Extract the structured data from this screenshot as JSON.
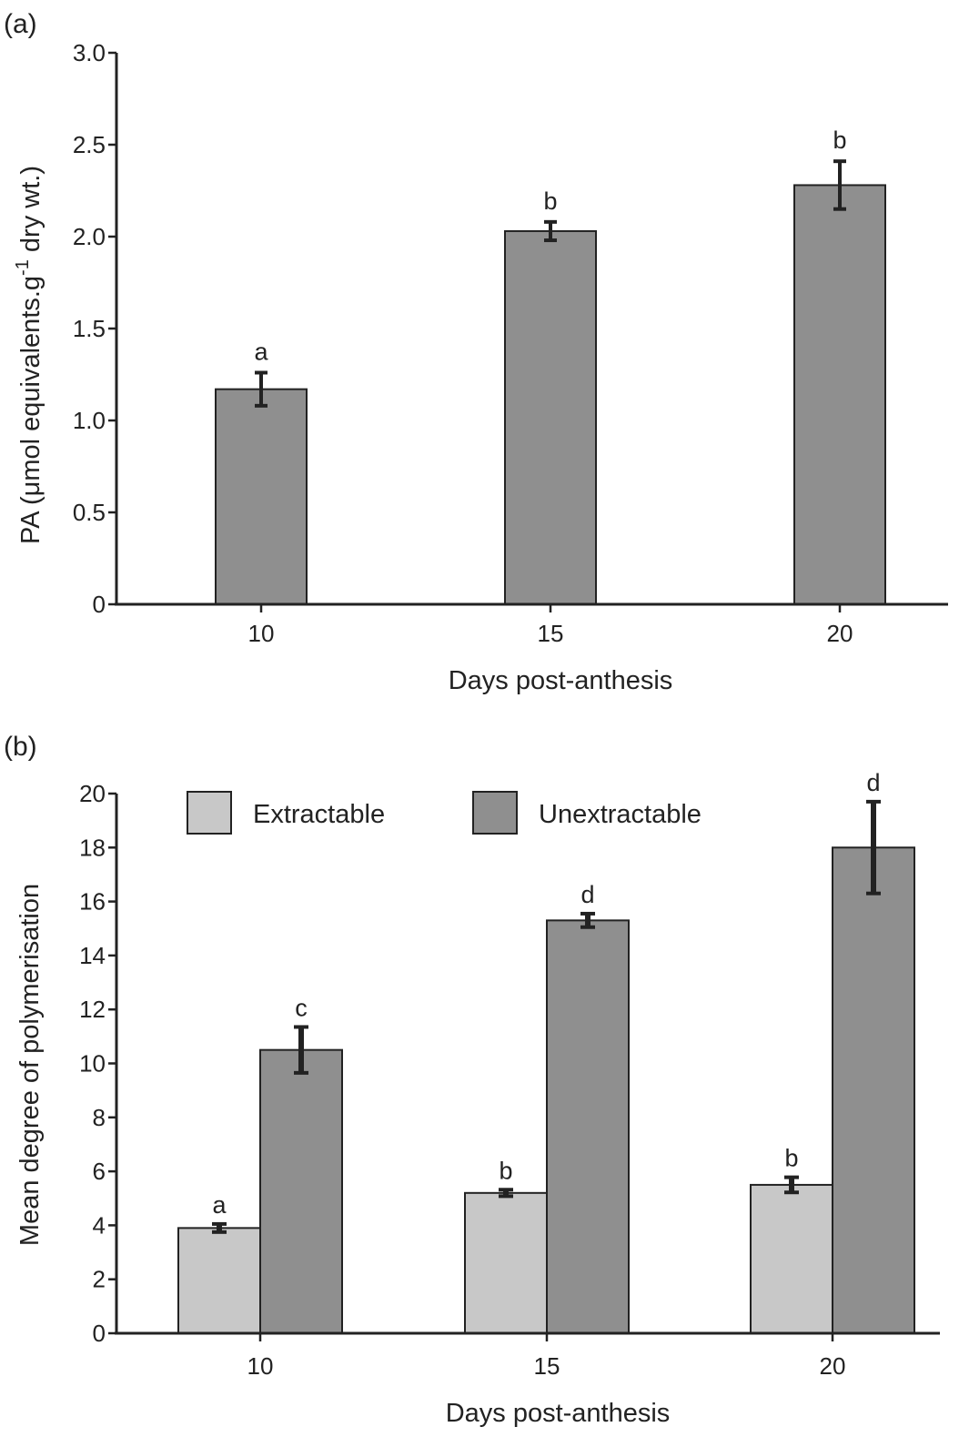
{
  "chart_data": [
    {
      "type": "bar",
      "panel_label": "(a)",
      "categories": [
        "10",
        "15",
        "20"
      ],
      "series": [
        {
          "values": [
            1.17,
            2.03,
            2.28
          ],
          "errors": [
            0.09,
            0.05,
            0.13
          ],
          "sig_letters": [
            "a",
            "b",
            "b"
          ],
          "color": "#8f8f8f"
        }
      ],
      "xlabel": "Days post-anthesis",
      "ylabel_main": "PA (μmol equivalents.g",
      "ylabel_sup": "-1",
      "ylabel_tail": " dry wt.)",
      "ylim": [
        0,
        3.0
      ],
      "yticks": [
        "0",
        "0.5",
        "1.0",
        "1.5",
        "2.0",
        "2.5",
        "3.0"
      ],
      "grid": false
    },
    {
      "type": "bar",
      "panel_label": "(b)",
      "categories": [
        "10",
        "15",
        "20"
      ],
      "series": [
        {
          "name": "Extractable",
          "values": [
            3.9,
            5.2,
            5.5
          ],
          "errors": [
            0.15,
            0.12,
            0.28
          ],
          "sig_letters": [
            "a",
            "b",
            "b"
          ],
          "color": "#c8c8c8"
        },
        {
          "name": "Unextractable",
          "values": [
            10.5,
            15.3,
            18.0
          ],
          "errors": [
            0.85,
            0.25,
            1.7
          ],
          "sig_letters": [
            "c",
            "d",
            "d"
          ],
          "color": "#8f8f8f"
        }
      ],
      "xlabel": "Days post-anthesis",
      "ylabel_main": "Mean degree of polymerisation",
      "ylim": [
        0,
        20
      ],
      "yticks": [
        "0",
        "2",
        "4",
        "6",
        "8",
        "10",
        "12",
        "14",
        "16",
        "18",
        "20"
      ],
      "legend_position": "top-left",
      "grid": false
    }
  ]
}
